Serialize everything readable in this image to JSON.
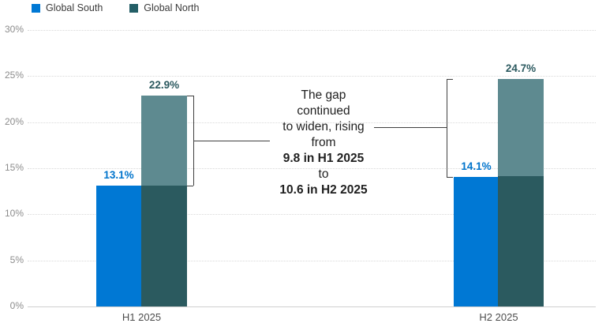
{
  "legend": {
    "items": [
      {
        "label": "Global South",
        "color": "#0078D4"
      },
      {
        "label": "Global North",
        "color": "#235E66"
      }
    ]
  },
  "chart_data": {
    "type": "bar",
    "title": "",
    "xlabel": "",
    "ylabel": "",
    "categories": [
      "H1 2025",
      "H2 2025"
    ],
    "series": [
      {
        "name": "Global South",
        "values": [
          13.1,
          14.1
        ],
        "color": "#0078D4",
        "label_color": "#0074CC"
      },
      {
        "name": "Global North",
        "values": [
          22.9,
          24.7
        ],
        "color": "#2B5A5F",
        "overlay_color": "#5E8A90",
        "label_color": "#2C5A60"
      }
    ],
    "data_labels": [
      [
        "13.1%",
        "22.9%"
      ],
      [
        "14.1%",
        "24.7%"
      ]
    ],
    "ylim": [
      0,
      30
    ],
    "ytick_step": 5,
    "yticks": [
      "0%",
      "5%",
      "10%",
      "15%",
      "20%",
      "25%",
      "30%"
    ],
    "grid": "horizontal-dotted",
    "legend_position": "top-left",
    "gap_values": {
      "h1": 9.8,
      "h2": 10.6
    }
  },
  "annotation": {
    "lines": [
      {
        "text": "The gap",
        "bold": false
      },
      {
        "text": "continued",
        "bold": false
      },
      {
        "text": "to widen, rising",
        "bold": false
      },
      {
        "text": "from",
        "bold": false
      },
      {
        "text": "9.8 in H1 2025",
        "bold": true
      },
      {
        "text": "to",
        "bold": false
      },
      {
        "text": "10.6 in H2 2025",
        "bold": true
      }
    ]
  }
}
